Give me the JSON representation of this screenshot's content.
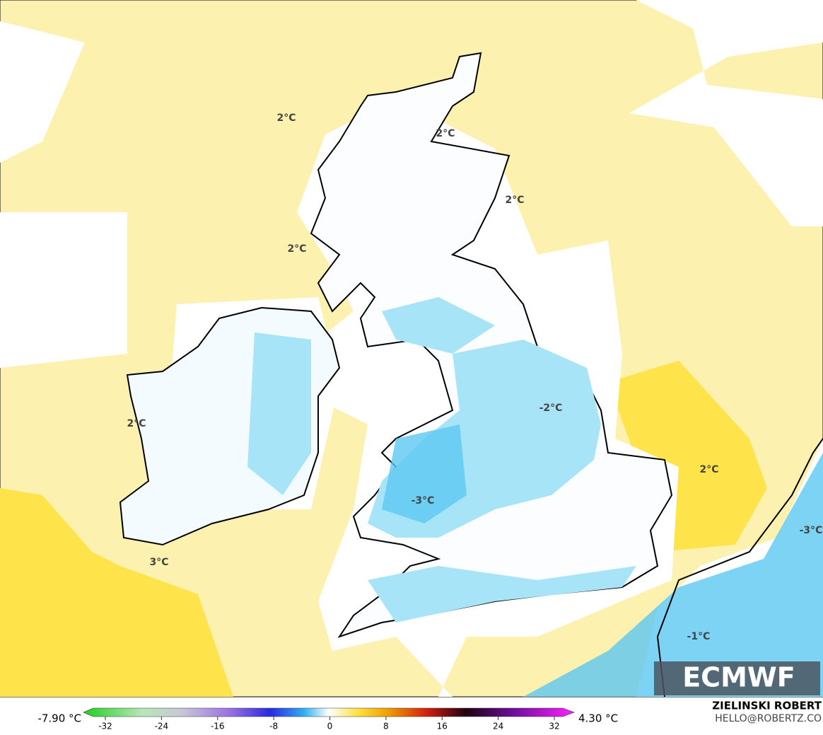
{
  "map": {
    "contour_labels": [
      "2°C",
      "2°C",
      "2°C",
      "2°C",
      "2°C",
      "3°C",
      "-2°C",
      "-3°C",
      "2°C",
      "-3°C",
      "-1°C"
    ]
  },
  "logo": "ECMWF",
  "colorbar": {
    "min_label": "-7.90 °C",
    "max_label": "4.30 °C",
    "ticks": [
      -32,
      -24,
      -16,
      -8,
      0,
      8,
      16,
      24,
      32
    ]
  },
  "credits": {
    "author": "ZIELINSKI ROBERT",
    "email": "HELLO@ROBERTZ.CO"
  }
}
